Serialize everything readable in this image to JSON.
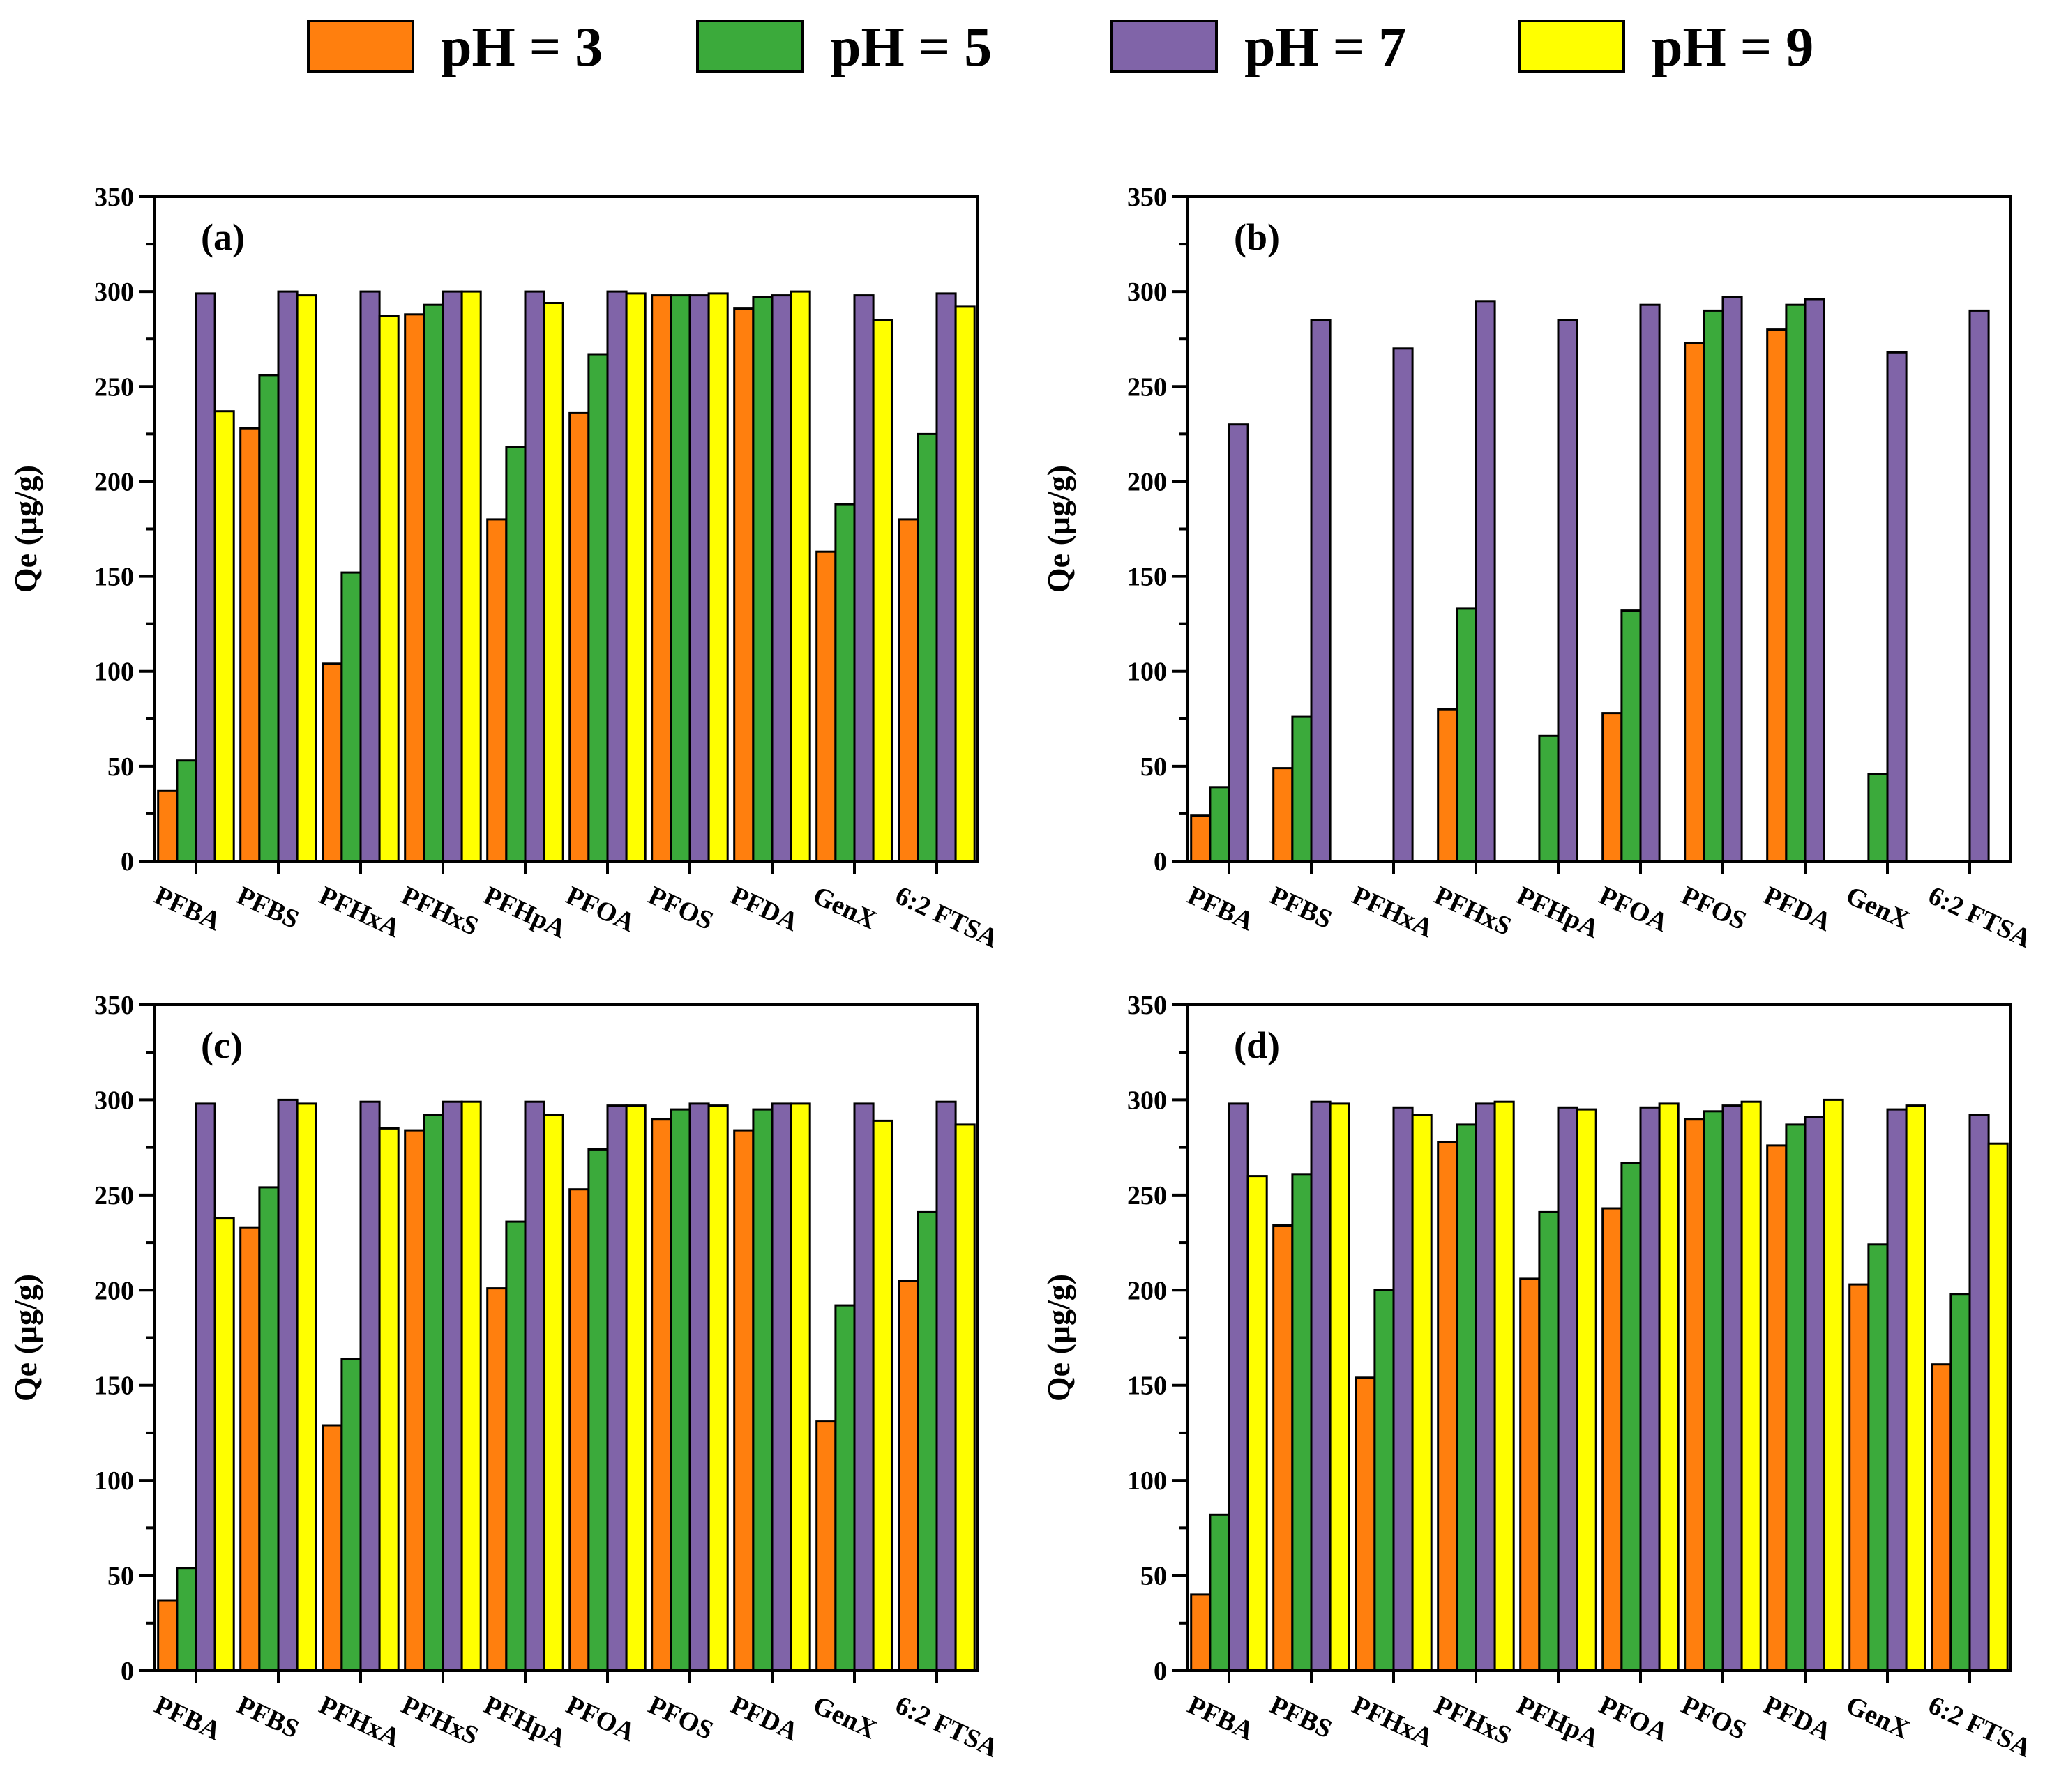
{
  "legend": {
    "entries": [
      {
        "label": "pH = 3",
        "color": "#FF7F0E"
      },
      {
        "label": "pH = 5",
        "color": "#3BAA3B"
      },
      {
        "label": "pH = 7",
        "color": "#8064A8"
      },
      {
        "label": "pH = 9",
        "color": "#FFFF00"
      }
    ]
  },
  "chart_data": [
    {
      "type": "bar",
      "panel_label": "(a)",
      "ylabel": "Qe (μg/g)",
      "xlabel": "",
      "ylim": [
        0,
        350
      ],
      "yticks": [
        "0",
        "50",
        "100",
        "150",
        "200",
        "250",
        "300",
        "350"
      ],
      "categories": [
        "PFBA",
        "PFBS",
        "PFHxA",
        "PFHxS",
        "PFHpA",
        "PFOA",
        "PFOS",
        "PFDA",
        "GenX",
        "6:2 FTSA"
      ],
      "series": [
        {
          "name": "pH = 3",
          "values": [
            37,
            228,
            104,
            288,
            180,
            236,
            298,
            291,
            163,
            180
          ]
        },
        {
          "name": "pH = 5",
          "values": [
            53,
            256,
            152,
            293,
            218,
            267,
            298,
            297,
            188,
            225
          ]
        },
        {
          "name": "pH = 7",
          "values": [
            299,
            300,
            300,
            300,
            300,
            300,
            298,
            298,
            298,
            299
          ]
        },
        {
          "name": "pH = 9",
          "values": [
            237,
            298,
            287,
            300,
            294,
            299,
            299,
            300,
            285,
            292
          ]
        }
      ]
    },
    {
      "type": "bar",
      "panel_label": "(b)",
      "ylabel": "Qe (μg/g)",
      "xlabel": "",
      "ylim": [
        0,
        350
      ],
      "yticks": [
        "0",
        "50",
        "100",
        "150",
        "200",
        "250",
        "300",
        "350"
      ],
      "categories": [
        "PFBA",
        "PFBS",
        "PFHxA",
        "PFHxS",
        "PFHpA",
        "PFOA",
        "PFOS",
        "PFDA",
        "GenX",
        "6:2 FTSA"
      ],
      "series": [
        {
          "name": "pH = 3",
          "values": [
            24,
            49,
            0,
            80,
            0,
            78,
            273,
            280,
            0,
            0
          ]
        },
        {
          "name": "pH = 5",
          "values": [
            39,
            76,
            0,
            133,
            66,
            132,
            290,
            293,
            46,
            0
          ]
        },
        {
          "name": "pH = 7",
          "values": [
            230,
            285,
            270,
            295,
            285,
            293,
            297,
            296,
            268,
            290
          ]
        },
        {
          "name": "pH = 9",
          "values": [
            0,
            0,
            0,
            0,
            0,
            0,
            0,
            0,
            0,
            0
          ]
        }
      ]
    },
    {
      "type": "bar",
      "panel_label": "(c)",
      "ylabel": "Qe (μg/g)",
      "xlabel": "",
      "ylim": [
        0,
        350
      ],
      "yticks": [
        "0",
        "50",
        "100",
        "150",
        "200",
        "250",
        "300",
        "350"
      ],
      "categories": [
        "PFBA",
        "PFBS",
        "PFHxA",
        "PFHxS",
        "PFHpA",
        "PFOA",
        "PFOS",
        "PFDA",
        "GenX",
        "6:2 FTSA"
      ],
      "series": [
        {
          "name": "pH = 3",
          "values": [
            37,
            233,
            129,
            284,
            201,
            253,
            290,
            284,
            131,
            205
          ]
        },
        {
          "name": "pH = 5",
          "values": [
            54,
            254,
            164,
            292,
            236,
            274,
            295,
            295,
            192,
            241
          ]
        },
        {
          "name": "pH = 7",
          "values": [
            298,
            300,
            299,
            299,
            299,
            297,
            298,
            298,
            298,
            299
          ]
        },
        {
          "name": "pH = 9",
          "values": [
            238,
            298,
            285,
            299,
            292,
            297,
            297,
            298,
            289,
            287
          ]
        }
      ]
    },
    {
      "type": "bar",
      "panel_label": "(d)",
      "ylabel": "Qe (μg/g)",
      "xlabel": "",
      "ylim": [
        0,
        350
      ],
      "yticks": [
        "0",
        "50",
        "100",
        "150",
        "200",
        "250",
        "300",
        "350"
      ],
      "categories": [
        "PFBA",
        "PFBS",
        "PFHxA",
        "PFHxS",
        "PFHpA",
        "PFOA",
        "PFOS",
        "PFDA",
        "GenX",
        "6:2 FTSA"
      ],
      "series": [
        {
          "name": "pH = 3",
          "values": [
            40,
            234,
            154,
            278,
            206,
            243,
            290,
            276,
            203,
            161
          ]
        },
        {
          "name": "pH = 5",
          "values": [
            82,
            261,
            200,
            287,
            241,
            267,
            294,
            287,
            224,
            198
          ]
        },
        {
          "name": "pH = 7",
          "values": [
            298,
            299,
            296,
            298,
            296,
            296,
            297,
            291,
            295,
            292
          ]
        },
        {
          "name": "pH = 9",
          "values": [
            260,
            298,
            292,
            299,
            295,
            298,
            299,
            300,
            297,
            277
          ]
        }
      ]
    }
  ]
}
